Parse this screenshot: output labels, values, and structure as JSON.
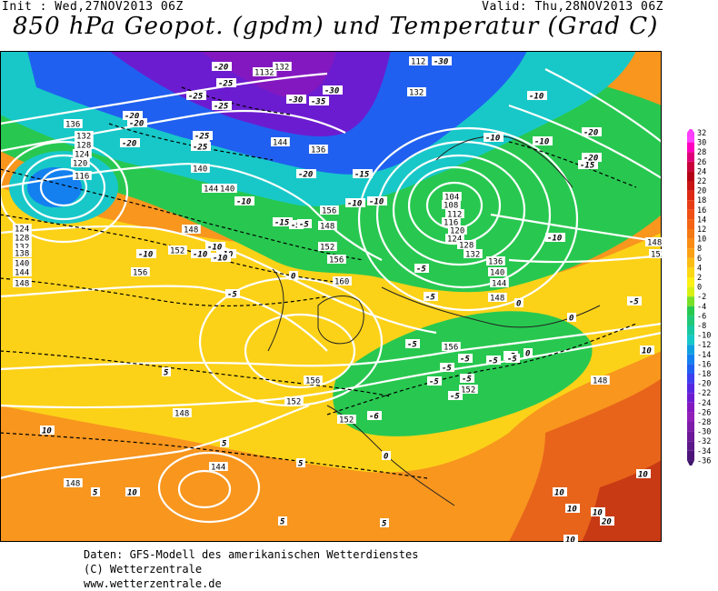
{
  "header": {
    "init": "Init : Wed,27NOV2013 06Z",
    "valid": "Valid: Thu,28NOV2013 06Z",
    "title": "850 hPa Geopot. (gpdm) und Temperatur (Grad C)"
  },
  "legend": {
    "values": [
      "32",
      "30",
      "28",
      "26",
      "24",
      "22",
      "20",
      "18",
      "16",
      "14",
      "12",
      "10",
      "8",
      "6",
      "4",
      "2",
      "0",
      "-2",
      "-4",
      "-6",
      "-8",
      "-10",
      "-12",
      "-14",
      "-16",
      "-18",
      "-20",
      "-22",
      "-24",
      "-26",
      "-28",
      "-30",
      "-32",
      "-34",
      "-36"
    ],
    "colors": [
      "#ff40ff",
      "#ff00c0",
      "#e0007a",
      "#c8003c",
      "#b40014",
      "#c81414",
      "#dc2814",
      "#e83c14",
      "#f05014",
      "#f46414",
      "#f47814",
      "#f88c14",
      "#fca014",
      "#fcbe14",
      "#fcd814",
      "#fcf014",
      "#d8f014",
      "#78e028",
      "#28c850",
      "#20c878",
      "#18c8a0",
      "#18c8c8",
      "#10a0e0",
      "#1480f0",
      "#2060f0",
      "#3c40f0",
      "#5428e0",
      "#6c1cd0",
      "#8418c0",
      "#9020b8",
      "#7c1ca8",
      "#6c1898",
      "#5c1888",
      "#4c1478"
    ]
  },
  "contour_labels": {
    "geopotential": [
      "112",
      "132",
      "1132",
      "132",
      "136",
      "132",
      "128",
      "124",
      "120",
      "116",
      "136",
      "144",
      "136",
      "140",
      "144",
      "140",
      "148",
      "152",
      "156",
      "160",
      "156",
      "152",
      "148",
      "156",
      "160",
      "156",
      "152",
      "148",
      "144",
      "148",
      "152",
      "104",
      "108",
      "112",
      "116",
      "120",
      "124",
      "128",
      "132",
      "136",
      "140",
      "144",
      "148",
      "156",
      "152",
      "148",
      "148",
      "152",
      "124",
      "128",
      "132",
      "138",
      "140",
      "144",
      "148"
    ],
    "temperature": [
      "-20",
      "-25",
      "-25",
      "-25",
      "-30",
      "-30",
      "-35",
      "-30",
      "-20",
      "-20",
      "-25",
      "-25",
      "-20",
      "-15",
      "-10",
      "-10",
      "-10",
      "-15",
      "-20",
      "-10",
      "-5",
      "-5",
      "-5",
      "-10",
      "-10",
      "-10",
      "-10",
      "-5",
      "-5",
      "-5",
      "-5",
      "-5",
      "0",
      "0",
      "-5",
      "-5",
      "-5",
      "-5",
      "-5",
      "-6",
      "-5",
      "0",
      "0",
      "5",
      "5",
      "5",
      "5",
      "5",
      "5",
      "10",
      "10",
      "10",
      "10",
      "10",
      "10",
      "10",
      "10",
      "15",
      "20",
      "-10",
      "-10",
      "-10",
      "-15",
      "-20",
      "-10",
      "-20",
      "0",
      "-5"
    ]
  },
  "footer": {
    "line1": "Daten: GFS-Modell des amerikanischen Wetterdienstes",
    "line2": "(C) Wetterzentrale",
    "line3": "www.wetterzentrale.de"
  }
}
